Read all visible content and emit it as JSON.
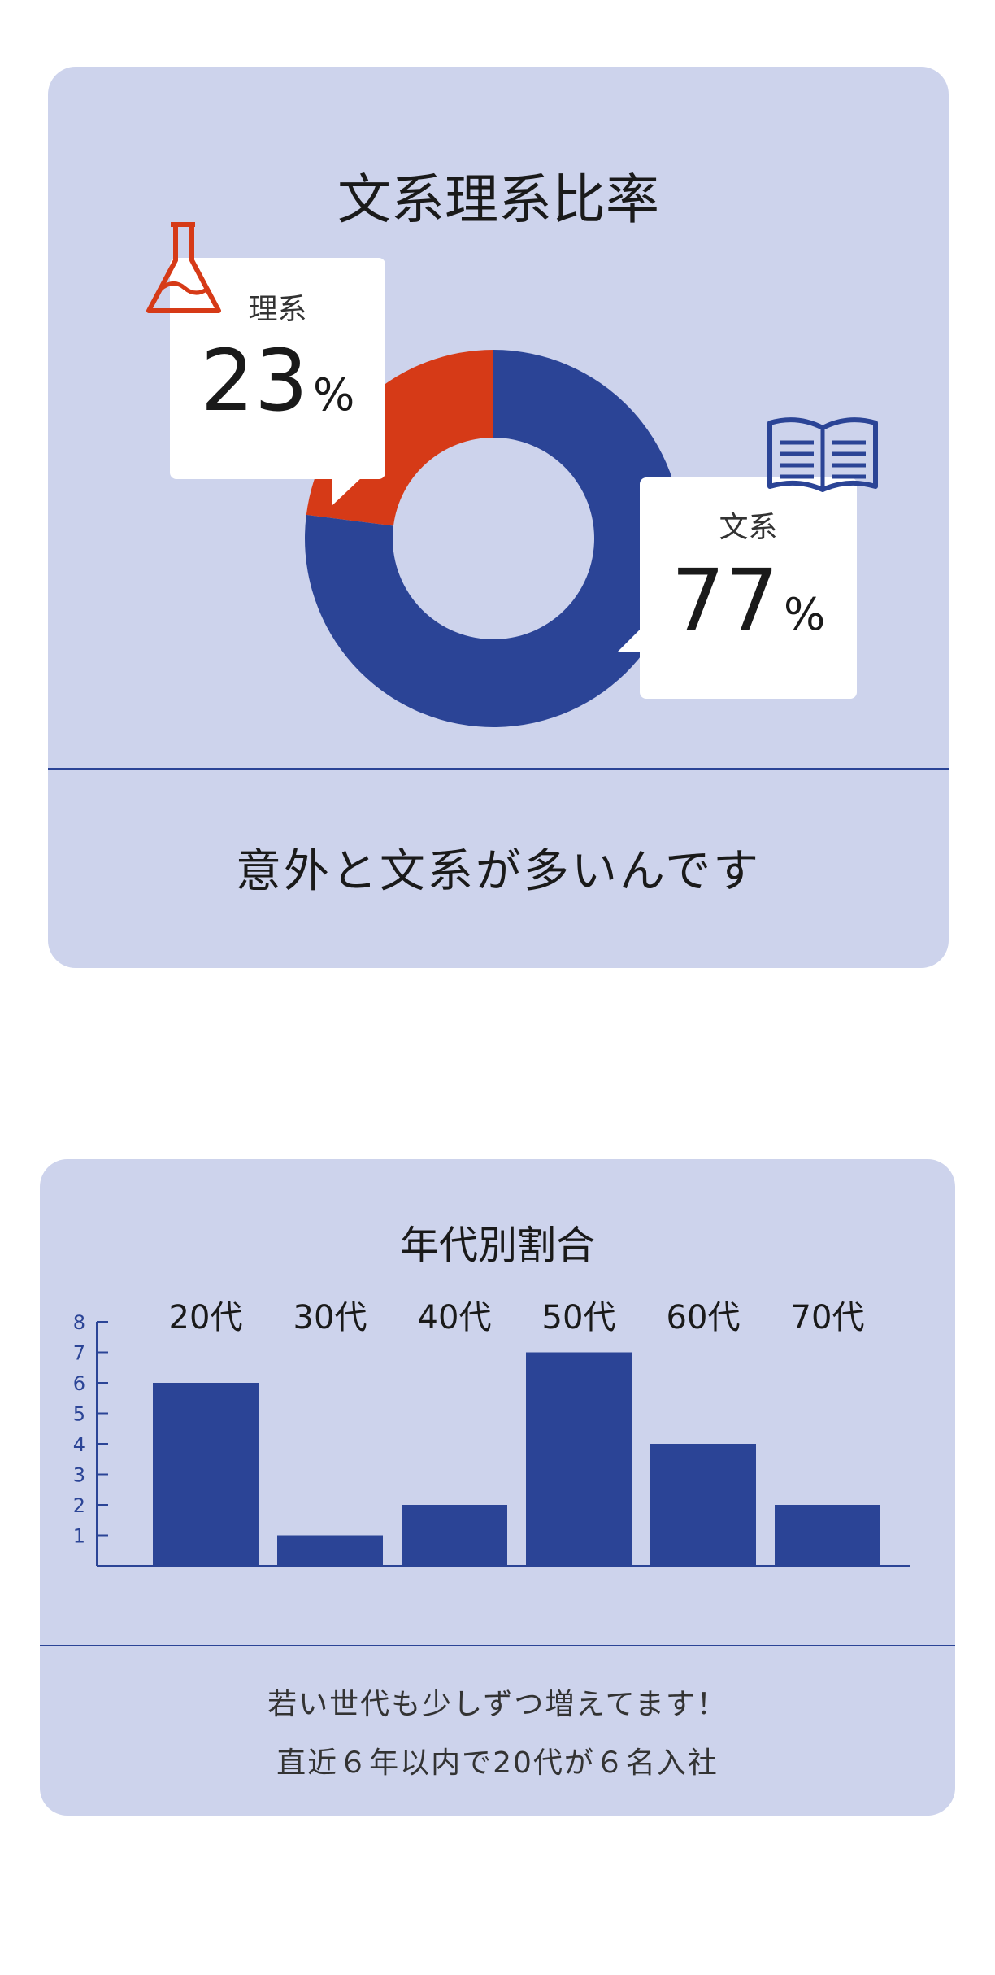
{
  "card1": {
    "title": "文系理系比率",
    "caption": "意外と文系が多いんです",
    "bubbles": {
      "rikei": {
        "label": "理系",
        "value": "23",
        "unit": "%",
        "icon": "flask-icon"
      },
      "bunkei": {
        "label": "文系",
        "value": "77",
        "unit": "%",
        "icon": "book-icon"
      }
    }
  },
  "card2": {
    "title": "年代別割合",
    "caption_line1": "若い世代も少しずつ増えてます！",
    "caption_line2": "直近６年以内で20代が６名入社"
  },
  "colors": {
    "card_bg": "#cdd3ec",
    "blue": "#2b4496",
    "red": "#d63a17",
    "white": "#ffffff"
  },
  "chart_data": [
    {
      "type": "pie",
      "title": "文系理系比率",
      "labels": [
        "理系",
        "文系"
      ],
      "values": [
        23,
        77
      ],
      "colors": [
        "#d63a17",
        "#2b4496"
      ]
    },
    {
      "type": "bar",
      "title": "年代別割合",
      "categories": [
        "20代",
        "30代",
        "40代",
        "50代",
        "60代",
        "70代"
      ],
      "values": [
        6,
        1,
        2,
        7,
        4,
        2
      ],
      "ylim": [
        0,
        8
      ],
      "yticks": [
        1,
        2,
        3,
        4,
        5,
        6,
        7,
        8
      ],
      "color": "#2b4496"
    }
  ]
}
